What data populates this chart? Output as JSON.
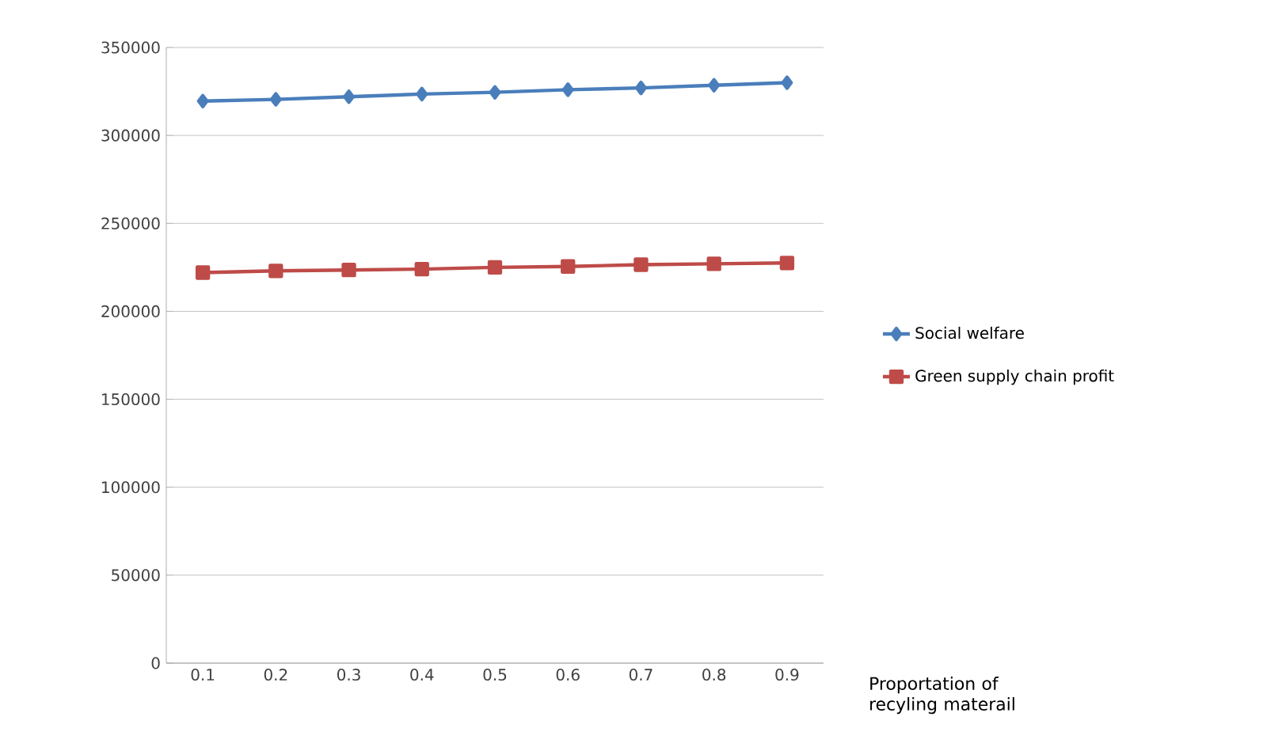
{
  "chart_data": {
    "type": "line",
    "xlabel": "Proportation of recyling materail",
    "categories": [
      "0.1",
      "0.2",
      "0.3",
      "0.4",
      "0.5",
      "0.6",
      "0.7",
      "0.8",
      "0.9"
    ],
    "series": [
      {
        "name": "Social welfare",
        "color": "#4a7ebb",
        "marker": "diamond",
        "values": [
          319500,
          320500,
          322000,
          323500,
          324500,
          326000,
          327000,
          328500,
          330000
        ]
      },
      {
        "name": "Green supply chain profit",
        "color": "#be4b48",
        "marker": "square",
        "values": [
          222000,
          223000,
          223500,
          224000,
          225000,
          225500,
          226500,
          227000,
          227500
        ]
      }
    ],
    "ylim": [
      0,
      350000
    ],
    "yticks": [
      0,
      50000,
      100000,
      150000,
      200000,
      250000,
      300000,
      350000
    ],
    "grid": "y",
    "legend": "right",
    "line_style": "solid"
  }
}
